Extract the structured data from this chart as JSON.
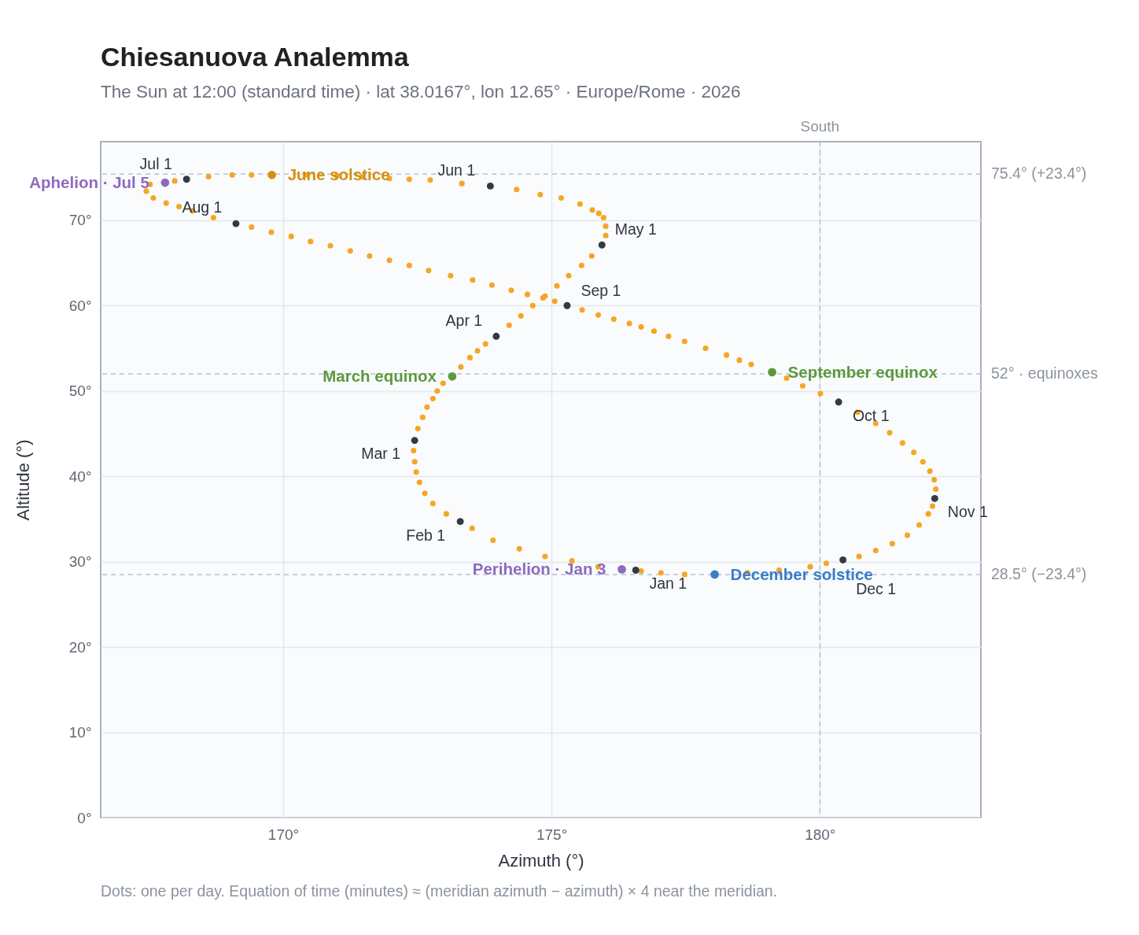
{
  "chart_data": {
    "type": "scatter",
    "title": "Chiesanuova Analemma",
    "subtitle": "The Sun at 12:00 (standard time) · lat 38.0167°, lon 12.65° · Europe/Rome · 2026",
    "xlabel": "Azimuth (°)",
    "ylabel": "Altitude (°)",
    "xlim": [
      166.6,
      183.0
    ],
    "ylim": [
      0,
      79.2
    ],
    "xticks": [
      {
        "value": 170,
        "label": "170°"
      },
      {
        "value": 175,
        "label": "175°"
      },
      {
        "value": 180,
        "label": "180°"
      }
    ],
    "yticks": [
      {
        "value": 0,
        "label": "0°"
      },
      {
        "value": 10,
        "label": "10°"
      },
      {
        "value": 20,
        "label": "20°"
      },
      {
        "value": 30,
        "label": "30°"
      },
      {
        "value": 40,
        "label": "40°"
      },
      {
        "value": 50,
        "label": "50°"
      },
      {
        "value": 60,
        "label": "60°"
      },
      {
        "value": 70,
        "label": "70°"
      }
    ],
    "grid": true,
    "marker": "circle",
    "series": [
      {
        "color": "#f5a623",
        "x": [
          175.87,
          175.38,
          174.88,
          174.4,
          173.91,
          173.52,
          173.04,
          172.79,
          172.64,
          172.54,
          172.48,
          172.45,
          172.43,
          172.51,
          172.6,
          172.68,
          172.79,
          172.87,
          172.98,
          173.31,
          173.48,
          173.62,
          173.77,
          174.21,
          174.43,
          174.65,
          174.88,
          175.1,
          175.32,
          175.56,
          175.75,
          176.01,
          176.01,
          175.97,
          175.88,
          175.76,
          175.53,
          175.18,
          174.79,
          174.35,
          173.33,
          172.74,
          172.35,
          171.98,
          171.47,
          171.0,
          170.44,
          169.41,
          169.05,
          168.61,
          167.98,
          167.52,
          167.45,
          167.58,
          167.82,
          168.06,
          168.31,
          168.7,
          169.41,
          169.78,
          170.15,
          170.51,
          170.88,
          171.25,
          171.61,
          171.98,
          172.35,
          172.71,
          173.12,
          173.53,
          173.89,
          174.25,
          174.55,
          174.84,
          175.06,
          175.57,
          175.87,
          176.16,
          176.45,
          176.67,
          176.91,
          177.18,
          177.48,
          177.87,
          178.26,
          178.5,
          178.72,
          179.38,
          179.68,
          180.01,
          180.7,
          181.04,
          181.3,
          181.54,
          181.75,
          181.92,
          182.05,
          182.13,
          182.16,
          182.1,
          182.02,
          181.85,
          181.63,
          181.35,
          181.04,
          180.73,
          180.12,
          179.82,
          179.24,
          178.65,
          177.48,
          177.04,
          176.67
        ],
        "values": [
          29.4,
          30.1,
          30.6,
          31.5,
          32.5,
          33.9,
          35.6,
          36.8,
          38.0,
          39.3,
          40.5,
          41.7,
          43.0,
          45.6,
          46.9,
          48.1,
          49.1,
          50.0,
          50.9,
          52.8,
          53.9,
          54.7,
          55.5,
          57.7,
          58.8,
          60.0,
          61.1,
          62.3,
          63.5,
          64.7,
          65.8,
          68.2,
          69.3,
          70.3,
          70.8,
          71.2,
          71.9,
          72.6,
          73.0,
          73.6,
          74.3,
          74.7,
          74.8,
          74.9,
          75.1,
          75.2,
          75.3,
          75.3,
          75.3,
          75.1,
          74.6,
          74.2,
          73.4,
          72.6,
          72.0,
          71.6,
          71.1,
          70.3,
          69.2,
          68.6,
          68.1,
          67.5,
          67.0,
          66.4,
          65.8,
          65.3,
          64.7,
          64.1,
          63.5,
          63.0,
          62.4,
          61.8,
          61.3,
          60.9,
          60.5,
          59.5,
          58.9,
          58.4,
          57.9,
          57.5,
          57.0,
          56.4,
          55.8,
          55.0,
          54.2,
          53.6,
          53.1,
          51.5,
          50.6,
          49.7,
          47.5,
          46.2,
          45.1,
          43.9,
          42.8,
          41.7,
          40.6,
          39.6,
          38.5,
          36.5,
          35.6,
          34.3,
          33.1,
          32.1,
          31.3,
          30.6,
          29.8,
          29.4,
          29.0,
          28.7,
          28.5,
          28.7,
          28.9
        ]
      },
      {
        "color": "#343a45",
        "x": [
          176.57,
          173.3,
          172.45,
          173.97,
          175.94,
          173.86,
          168.2,
          169.12,
          175.29,
          180.35,
          182.14,
          180.43
        ],
        "values": [
          29.0,
          34.7,
          44.2,
          56.4,
          67.1,
          74.0,
          74.8,
          69.6,
          60.0,
          48.7,
          37.4,
          30.2
        ]
      },
      {
        "name": "June solstice",
        "color": "#d4900e",
        "x": [
          169.79
        ],
        "values": [
          75.3
        ]
      },
      {
        "name": "March equinox",
        "color": "#5b9a3c",
        "x": [
          173.15
        ],
        "values": [
          51.7
        ]
      },
      {
        "name": "September equinox",
        "color": "#5b9a3c",
        "x": [
          179.11
        ],
        "values": [
          52.2
        ]
      },
      {
        "name": "December solstice",
        "color": "#3a7dc9",
        "x": [
          178.04
        ],
        "values": [
          28.5
        ]
      },
      {
        "name": "Aphelion · Jul 5",
        "color": "#8e6abf",
        "x": [
          167.8
        ],
        "values": [
          74.4
        ]
      },
      {
        "name": "Perihelion · Jan 3",
        "color": "#8e6abf",
        "x": [
          176.31
        ],
        "values": [
          29.1
        ]
      }
    ],
    "ref_lines": [
      {
        "axis": "y",
        "value": 75.4,
        "label": "75.4° (+23.4°)",
        "color": "#b9c1cb",
        "line_style": "dashed"
      },
      {
        "axis": "y",
        "value": 52,
        "label": "52° · equinoxes",
        "color": "#b9c1cb",
        "line_style": "dashed"
      },
      {
        "axis": "y",
        "value": 28.5,
        "label": "28.5° (−23.4°)",
        "color": "#b9c1cb",
        "line_style": "dashed"
      },
      {
        "axis": "x",
        "value": 180,
        "label": "South",
        "color": "#b9c1cb",
        "line_style": "dashed"
      }
    ],
    "annotations": [
      {
        "text": "Jan 1",
        "x": 176.57,
        "y": 29.0
      },
      {
        "text": "Feb 1",
        "x": 173.3,
        "y": 34.7
      },
      {
        "text": "Mar 1",
        "x": 172.45,
        "y": 44.2
      },
      {
        "text": "Apr 1",
        "x": 173.97,
        "y": 56.4
      },
      {
        "text": "May 1",
        "x": 175.94,
        "y": 67.1
      },
      {
        "text": "Jun 1",
        "x": 173.86,
        "y": 74.0
      },
      {
        "text": "Jul 1",
        "x": 168.2,
        "y": 74.8
      },
      {
        "text": "Aug 1",
        "x": 169.12,
        "y": 69.6
      },
      {
        "text": "Sep 1",
        "x": 175.29,
        "y": 60.0
      },
      {
        "text": "Oct 1",
        "x": 180.35,
        "y": 48.7
      },
      {
        "text": "Nov 1",
        "x": 182.14,
        "y": 37.4
      },
      {
        "text": "Dec 1",
        "x": 180.43,
        "y": 30.2
      },
      "Dots: one per day. Equation of time (minutes) ≈ (meridian azimuth − azimuth) × 4 near the meridian."
    ]
  }
}
